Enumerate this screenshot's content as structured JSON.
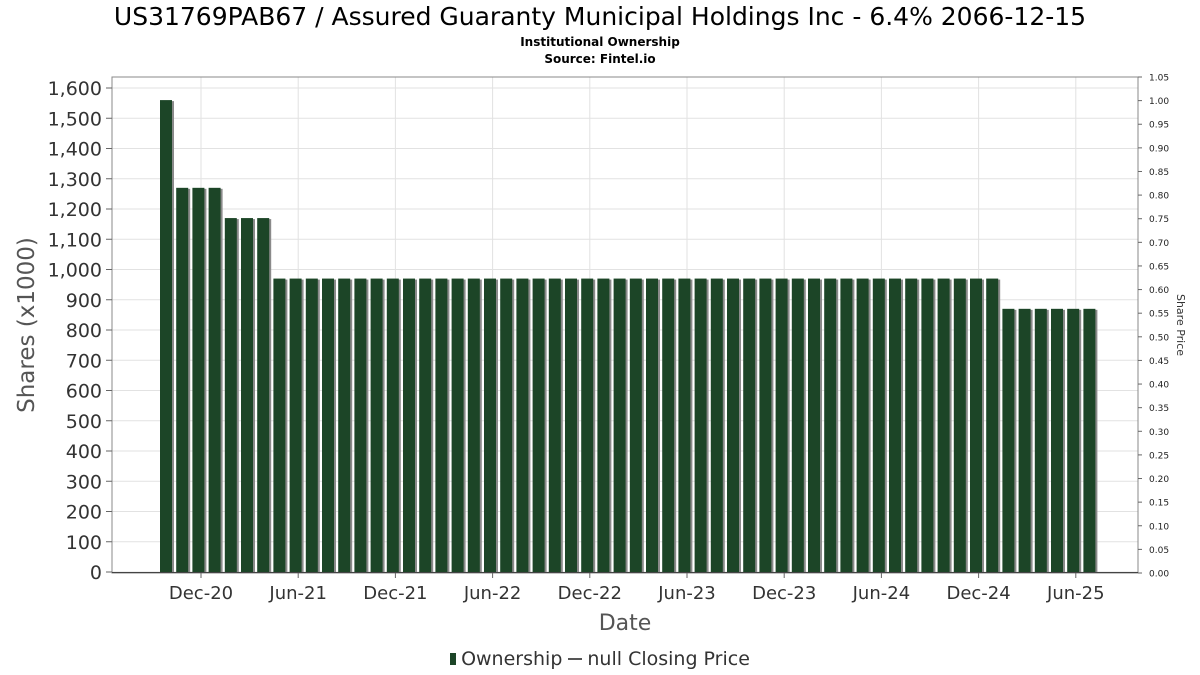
{
  "title": "US31769PAB67 / Assured Guaranty Municipal Holdings Inc - 6.4% 2066-12-15",
  "subtitle_1": "Institutional Ownership",
  "subtitle_2": "Source: Fintel.io",
  "legend": {
    "ownership_label": "Ownership",
    "price_label": "null Closing Price"
  },
  "colors": {
    "bar": "#1c4527",
    "bar_shadow": "#8a8a8a",
    "grid": "#e2e2e2",
    "axis": "#888888"
  },
  "chart_data": {
    "type": "bar",
    "title": "US31769PAB67 / Assured Guaranty Municipal Holdings Inc - 6.4% 2066-12-15",
    "xlabel": "Date",
    "ylabel": "Shares (x1000)",
    "y2label": "Share Price",
    "ylim": [
      0,
      1640
    ],
    "y2lim": [
      0,
      1.05
    ],
    "yticks": [
      0,
      100,
      200,
      300,
      400,
      500,
      600,
      700,
      800,
      900,
      1000,
      1100,
      1200,
      1300,
      1400,
      1500,
      1600
    ],
    "ytick_labels": [
      "0",
      "100",
      "200",
      "300",
      "400",
      "500",
      "600",
      "700",
      "800",
      "900",
      "1,000",
      "1,100",
      "1,200",
      "1,300",
      "1,400",
      "1,500",
      "1,600"
    ],
    "y2ticks": [
      "0.00",
      "0.05",
      "0.10",
      "0.15",
      "0.20",
      "0.25",
      "0.30",
      "0.35",
      "0.40",
      "0.45",
      "0.50",
      "0.55",
      "0.60",
      "0.65",
      "0.70",
      "0.75",
      "0.80",
      "0.85",
      "0.90",
      "0.95",
      "1.00",
      "1.05"
    ],
    "xticks": [
      "Dec-20",
      "Jun-21",
      "Dec-21",
      "Jun-22",
      "Dec-22",
      "Jun-23",
      "Dec-23",
      "Jun-24",
      "Dec-24",
      "Jun-25"
    ],
    "grid": true,
    "legend_position": "bottom",
    "series": [
      {
        "name": "Ownership",
        "values": [
          1560,
          1270,
          1270,
          1270,
          1170,
          1170,
          1170,
          970,
          970,
          970,
          970,
          970,
          970,
          970,
          970,
          970,
          970,
          970,
          970,
          970,
          970,
          970,
          970,
          970,
          970,
          970,
          970,
          970,
          970,
          970,
          970,
          970,
          970,
          970,
          970,
          970,
          970,
          970,
          970,
          970,
          970,
          970,
          970,
          970,
          970,
          970,
          970,
          970,
          970,
          970,
          970,
          970,
          870,
          870,
          870,
          870,
          870,
          870
        ]
      },
      {
        "name": "null Closing Price",
        "values": []
      }
    ]
  }
}
